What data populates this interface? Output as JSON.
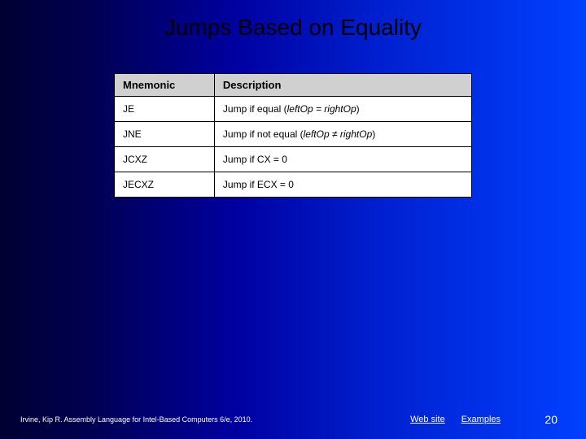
{
  "slide": {
    "title": "Jumps Based on Equality",
    "background_gradient": [
      "#000033",
      "#000050",
      "#0000a0",
      "#0020d0",
      "#0040ff"
    ]
  },
  "table": {
    "type": "table",
    "header_bg": "#d0d0d0",
    "cell_bg": "#ffffff",
    "border_color": "#000000",
    "columns": [
      "Mnemonic",
      "Description"
    ],
    "rows": [
      {
        "mnemonic": "JE",
        "desc_prefix": "Jump if equal (",
        "desc_italic": "leftOp = rightOp",
        "desc_suffix": ")"
      },
      {
        "mnemonic": "JNE",
        "desc_prefix": "Jump if not equal (",
        "desc_italic": "leftOp ≠ rightOp",
        "desc_suffix": ")"
      },
      {
        "mnemonic": "JCXZ",
        "desc_prefix": "Jump if CX = 0",
        "desc_italic": "",
        "desc_suffix": ""
      },
      {
        "mnemonic": "JECXZ",
        "desc_prefix": "Jump if ECX = 0",
        "desc_italic": "",
        "desc_suffix": ""
      }
    ]
  },
  "footer": {
    "citation": "Irvine, Kip R. Assembly Language for Intel-Based Computers 6/e, 2010.",
    "link1": "Web site",
    "link2": "Examples",
    "page_number": "20"
  }
}
